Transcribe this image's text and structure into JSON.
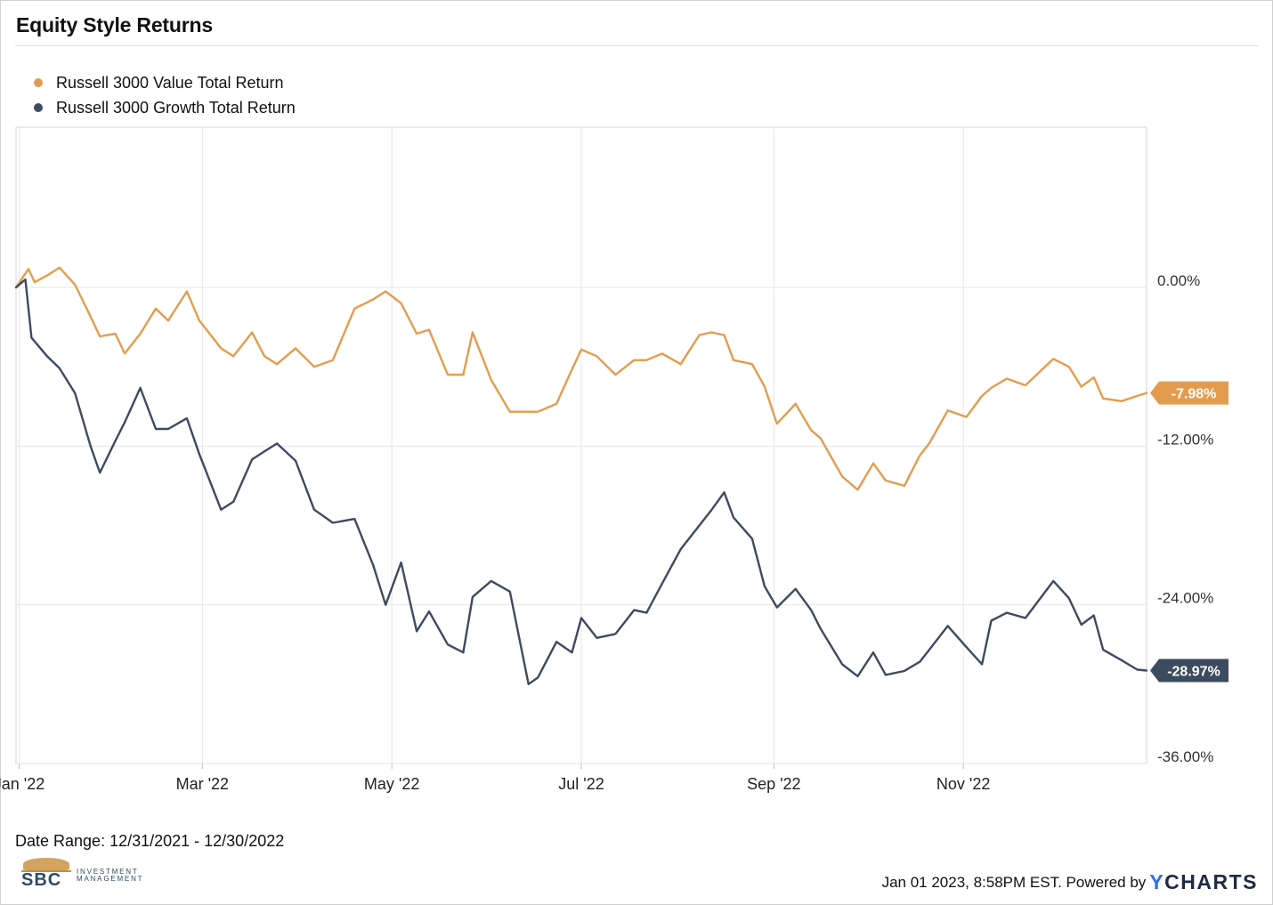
{
  "header": {
    "title": "Equity Style Returns"
  },
  "colors": {
    "value": "#e39c4f",
    "growth": "#3d4b5e",
    "grid": "#e6e6e6"
  },
  "chart_data": {
    "type": "line",
    "title": "Equity Style Returns",
    "y_unit": "%",
    "ylim": [
      -36,
      0
    ],
    "y_ticks": [
      0,
      -12,
      -24,
      -36
    ],
    "y_tick_labels": [
      "0.00%",
      "-12.00%",
      "-24.00%",
      "-36.00%"
    ],
    "x_range": [
      "2021-12-31",
      "2022-12-30"
    ],
    "x_ticks": [
      "2022-01-01",
      "2022-03-01",
      "2022-05-01",
      "2022-07-01",
      "2022-09-01",
      "2022-11-01"
    ],
    "x_tick_labels": [
      "Jan '22",
      "Mar '22",
      "May '22",
      "Jul '22",
      "Sep '22",
      "Nov '22"
    ],
    "grid": true,
    "legend_position": "top-left",
    "series": [
      {
        "name": "Russell 3000 Value Total Return",
        "color": "#e39c4f",
        "end_label": "-7.98%",
        "points": [
          [
            "2021-12-31",
            0.0
          ],
          [
            "2022-01-04",
            1.4
          ],
          [
            "2022-01-06",
            0.4
          ],
          [
            "2022-01-10",
            0.9
          ],
          [
            "2022-01-14",
            1.5
          ],
          [
            "2022-01-19",
            0.2
          ],
          [
            "2022-01-24",
            -2.2
          ],
          [
            "2022-01-27",
            -3.7
          ],
          [
            "2022-02-01",
            -3.5
          ],
          [
            "2022-02-04",
            -5.0
          ],
          [
            "2022-02-09",
            -3.5
          ],
          [
            "2022-02-14",
            -1.6
          ],
          [
            "2022-02-18",
            -2.5
          ],
          [
            "2022-02-24",
            -0.3
          ],
          [
            "2022-02-28",
            -2.5
          ],
          [
            "2022-03-07",
            -4.6
          ],
          [
            "2022-03-11",
            -5.2
          ],
          [
            "2022-03-17",
            -3.4
          ],
          [
            "2022-03-21",
            -5.2
          ],
          [
            "2022-03-25",
            -5.8
          ],
          [
            "2022-03-31",
            -4.6
          ],
          [
            "2022-04-06",
            -6.0
          ],
          [
            "2022-04-12",
            -5.5
          ],
          [
            "2022-04-19",
            -1.6
          ],
          [
            "2022-04-25",
            -0.9
          ],
          [
            "2022-04-29",
            -0.3
          ],
          [
            "2022-05-04",
            -1.2
          ],
          [
            "2022-05-09",
            -3.5
          ],
          [
            "2022-05-13",
            -3.2
          ],
          [
            "2022-05-19",
            -6.6
          ],
          [
            "2022-05-24",
            -6.6
          ],
          [
            "2022-05-27",
            -3.4
          ],
          [
            "2022-06-02",
            -7.0
          ],
          [
            "2022-06-08",
            -9.4
          ],
          [
            "2022-06-14",
            -9.4
          ],
          [
            "2022-06-17",
            -9.4
          ],
          [
            "2022-06-23",
            -8.8
          ],
          [
            "2022-06-28",
            -6.2
          ],
          [
            "2022-07-01",
            -4.7
          ],
          [
            "2022-07-06",
            -5.2
          ],
          [
            "2022-07-12",
            -6.6
          ],
          [
            "2022-07-18",
            -5.5
          ],
          [
            "2022-07-22",
            -5.5
          ],
          [
            "2022-07-27",
            -5.0
          ],
          [
            "2022-08-02",
            -5.8
          ],
          [
            "2022-08-08",
            -3.6
          ],
          [
            "2022-08-12",
            -3.4
          ],
          [
            "2022-08-16",
            -3.6
          ],
          [
            "2022-08-19",
            -5.5
          ],
          [
            "2022-08-25",
            -5.8
          ],
          [
            "2022-08-29",
            -7.5
          ],
          [
            "2022-09-02",
            -10.3
          ],
          [
            "2022-09-08",
            -8.8
          ],
          [
            "2022-09-13",
            -10.8
          ],
          [
            "2022-09-16",
            -11.4
          ],
          [
            "2022-09-23",
            -14.3
          ],
          [
            "2022-09-28",
            -15.3
          ],
          [
            "2022-10-03",
            -13.3
          ],
          [
            "2022-10-07",
            -14.6
          ],
          [
            "2022-10-13",
            -15.0
          ],
          [
            "2022-10-18",
            -12.7
          ],
          [
            "2022-10-21",
            -11.8
          ],
          [
            "2022-10-27",
            -9.3
          ],
          [
            "2022-11-02",
            -9.8
          ],
          [
            "2022-11-07",
            -8.2
          ],
          [
            "2022-11-10",
            -7.6
          ],
          [
            "2022-11-15",
            -6.9
          ],
          [
            "2022-11-21",
            -7.4
          ],
          [
            "2022-11-30",
            -5.4
          ],
          [
            "2022-12-05",
            -6.0
          ],
          [
            "2022-12-09",
            -7.5
          ],
          [
            "2022-12-13",
            -6.8
          ],
          [
            "2022-12-16",
            -8.4
          ],
          [
            "2022-12-22",
            -8.6
          ],
          [
            "2022-12-27",
            -8.2
          ],
          [
            "2022-12-30",
            -7.98
          ]
        ]
      },
      {
        "name": "Russell 3000 Growth Total Return",
        "color": "#3d4b5e",
        "end_label": "-28.97%",
        "points": [
          [
            "2021-12-31",
            0.0
          ],
          [
            "2022-01-03",
            0.6
          ],
          [
            "2022-01-05",
            -3.8
          ],
          [
            "2022-01-10",
            -5.2
          ],
          [
            "2022-01-14",
            -6.1
          ],
          [
            "2022-01-19",
            -8.0
          ],
          [
            "2022-01-24",
            -12.0
          ],
          [
            "2022-01-27",
            -14.0
          ],
          [
            "2022-02-01",
            -11.6
          ],
          [
            "2022-02-04",
            -10.2
          ],
          [
            "2022-02-09",
            -7.6
          ],
          [
            "2022-02-14",
            -10.7
          ],
          [
            "2022-02-18",
            -10.7
          ],
          [
            "2022-02-24",
            -9.9
          ],
          [
            "2022-02-28",
            -12.6
          ],
          [
            "2022-03-07",
            -16.8
          ],
          [
            "2022-03-11",
            -16.2
          ],
          [
            "2022-03-17",
            -13.0
          ],
          [
            "2022-03-21",
            -12.4
          ],
          [
            "2022-03-25",
            -11.8
          ],
          [
            "2022-03-31",
            -13.1
          ],
          [
            "2022-04-06",
            -16.8
          ],
          [
            "2022-04-12",
            -17.8
          ],
          [
            "2022-04-19",
            -17.5
          ],
          [
            "2022-04-25",
            -21.0
          ],
          [
            "2022-04-29",
            -24.0
          ],
          [
            "2022-05-04",
            -20.8
          ],
          [
            "2022-05-09",
            -26.0
          ],
          [
            "2022-05-13",
            -24.5
          ],
          [
            "2022-05-19",
            -27.0
          ],
          [
            "2022-05-24",
            -27.6
          ],
          [
            "2022-05-27",
            -23.4
          ],
          [
            "2022-06-02",
            -22.2
          ],
          [
            "2022-06-08",
            -23.0
          ],
          [
            "2022-06-14",
            -30.0
          ],
          [
            "2022-06-17",
            -29.5
          ],
          [
            "2022-06-23",
            -26.8
          ],
          [
            "2022-06-28",
            -27.6
          ],
          [
            "2022-07-01",
            -25.0
          ],
          [
            "2022-07-06",
            -26.5
          ],
          [
            "2022-07-12",
            -26.2
          ],
          [
            "2022-07-18",
            -24.4
          ],
          [
            "2022-07-22",
            -24.6
          ],
          [
            "2022-07-27",
            -22.4
          ],
          [
            "2022-08-02",
            -19.8
          ],
          [
            "2022-08-08",
            -18.0
          ],
          [
            "2022-08-12",
            -16.8
          ],
          [
            "2022-08-16",
            -15.5
          ],
          [
            "2022-08-19",
            -17.4
          ],
          [
            "2022-08-25",
            -19.0
          ],
          [
            "2022-08-29",
            -22.6
          ],
          [
            "2022-09-02",
            -24.2
          ],
          [
            "2022-09-08",
            -22.8
          ],
          [
            "2022-09-13",
            -24.4
          ],
          [
            "2022-09-16",
            -25.8
          ],
          [
            "2022-09-23",
            -28.5
          ],
          [
            "2022-09-28",
            -29.4
          ],
          [
            "2022-10-03",
            -27.6
          ],
          [
            "2022-10-07",
            -29.3
          ],
          [
            "2022-10-13",
            -29.0
          ],
          [
            "2022-10-18",
            -28.3
          ],
          [
            "2022-10-21",
            -27.4
          ],
          [
            "2022-10-27",
            -25.6
          ],
          [
            "2022-11-02",
            -27.2
          ],
          [
            "2022-11-07",
            -28.5
          ],
          [
            "2022-11-10",
            -25.2
          ],
          [
            "2022-11-15",
            -24.6
          ],
          [
            "2022-11-21",
            -25.0
          ],
          [
            "2022-11-30",
            -22.2
          ],
          [
            "2022-12-05",
            -23.5
          ],
          [
            "2022-12-09",
            -25.5
          ],
          [
            "2022-12-13",
            -24.8
          ],
          [
            "2022-12-16",
            -27.4
          ],
          [
            "2022-12-22",
            -28.2
          ],
          [
            "2022-12-27",
            -28.9
          ],
          [
            "2022-12-30",
            -28.97
          ]
        ]
      }
    ]
  },
  "footer": {
    "date_range": "Date Range: 12/31/2021 - 12/30/2022",
    "timestamp": "Jan 01 2023, 8:58PM EST. Powered by",
    "brand_y": "Y",
    "brand_rest": "CHARTS",
    "logo_text": "SBC",
    "logo_sub_1": "INVESTMENT",
    "logo_sub_2": "MANAGEMENT"
  }
}
